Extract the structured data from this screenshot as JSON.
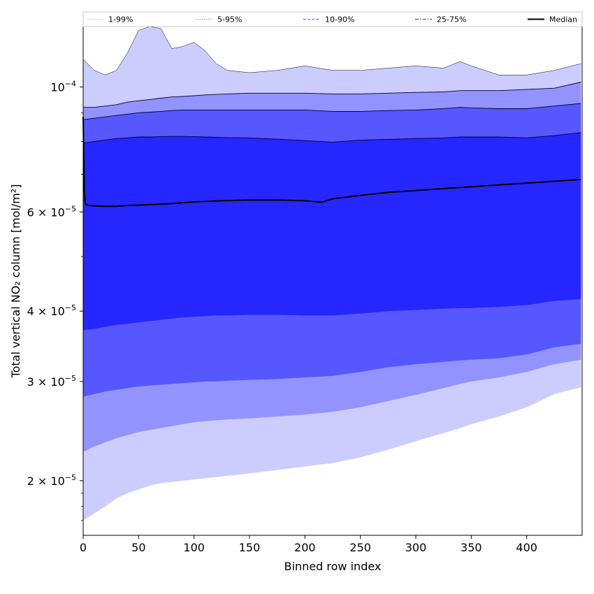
{
  "chart_data": {
    "type": "area",
    "xlabel": "Binned row index",
    "ylabel": "Total vertical NO₂ column [mol/m²]",
    "xlim": [
      0,
      450
    ],
    "ylim": [
      1.6e-05,
      0.000128
    ],
    "yscale": "log",
    "grid": false,
    "legend_position": "top",
    "x_ticks": [
      {
        "value": 0,
        "label": "0"
      },
      {
        "value": 50,
        "label": "50"
      },
      {
        "value": 100,
        "label": "100"
      },
      {
        "value": 150,
        "label": "150"
      },
      {
        "value": 200,
        "label": "200"
      },
      {
        "value": 250,
        "label": "250"
      },
      {
        "value": 300,
        "label": "300"
      },
      {
        "value": 350,
        "label": "350"
      },
      {
        "value": 400,
        "label": "400"
      }
    ],
    "y_ticks": [
      {
        "value": 2e-05,
        "base": "2 × 10",
        "exp": "−5"
      },
      {
        "value": 3e-05,
        "base": "3 × 10",
        "exp": "−5"
      },
      {
        "value": 4e-05,
        "base": "4 × 10",
        "exp": "−5"
      },
      {
        "value": 6e-05,
        "base": "6 × 10",
        "exp": "−5"
      },
      {
        "value": 0.0001,
        "base": "10",
        "exp": "−4"
      }
    ],
    "x": [
      0,
      10,
      20,
      30,
      40,
      50,
      60,
      70,
      80,
      90,
      100,
      110,
      120,
      130,
      150,
      175,
      200,
      225,
      250,
      275,
      300,
      325,
      340,
      350,
      375,
      400,
      425,
      449
    ],
    "bands": [
      {
        "name": "1-99%",
        "color": "#ccccff",
        "lower": [
          1.7e-05,
          1.75e-05,
          1.8e-05,
          1.86e-05,
          1.9e-05,
          1.93e-05,
          1.96e-05,
          1.98e-05,
          1.99e-05,
          2e-05,
          2.01e-05,
          2.02e-05,
          2.03e-05,
          2.04e-05,
          2.06e-05,
          2.09e-05,
          2.12e-05,
          2.15e-05,
          2.2e-05,
          2.27e-05,
          2.35e-05,
          2.43e-05,
          2.48e-05,
          2.52e-05,
          2.6e-05,
          2.7e-05,
          2.85e-05,
          2.93e-05
        ],
        "upper": [
          0.000112,
          0.000107,
          0.000105,
          0.000107,
          0.000115,
          0.000126,
          0.000128,
          0.000127,
          0.000117,
          0.000118,
          0.00012,
          0.000116,
          0.00011,
          0.000107,
          0.000106,
          0.000107,
          0.000109,
          0.000107,
          0.000107,
          0.000108,
          0.000109,
          0.000108,
          0.000111,
          0.000109,
          0.000105,
          0.000105,
          0.000107,
          0.00011
        ]
      },
      {
        "name": "5-95%",
        "color": "#9393ff",
        "lower": [
          2.25e-05,
          2.3e-05,
          2.34e-05,
          2.38e-05,
          2.41e-05,
          2.44e-05,
          2.46e-05,
          2.48e-05,
          2.5e-05,
          2.52e-05,
          2.54e-05,
          2.55e-05,
          2.56e-05,
          2.57e-05,
          2.58e-05,
          2.6e-05,
          2.62e-05,
          2.65e-05,
          2.7e-05,
          2.77e-05,
          2.84e-05,
          2.92e-05,
          2.97e-05,
          3e-05,
          3.05e-05,
          3.12e-05,
          3.22e-05,
          3.28e-05
        ],
        "upper": [
          9.2e-05,
          9.2e-05,
          9.25e-05,
          9.3e-05,
          9.4e-05,
          9.45e-05,
          9.5e-05,
          9.55e-05,
          9.6e-05,
          9.62e-05,
          9.65e-05,
          9.68e-05,
          9.7e-05,
          9.72e-05,
          9.75e-05,
          9.75e-05,
          9.75e-05,
          9.72e-05,
          9.72e-05,
          9.75e-05,
          9.78e-05,
          9.8e-05,
          9.85e-05,
          9.85e-05,
          9.85e-05,
          9.9e-05,
          9.95e-05,
          0.000102
        ]
      },
      {
        "name": "10-90%",
        "color": "#5757ff",
        "lower": [
          2.82e-05,
          2.85e-05,
          2.88e-05,
          2.9e-05,
          2.92e-05,
          2.94e-05,
          2.95e-05,
          2.96e-05,
          2.97e-05,
          2.98e-05,
          2.99e-05,
          3e-05,
          3e-05,
          3.01e-05,
          3.02e-05,
          3.03e-05,
          3.05e-05,
          3.07e-05,
          3.12e-05,
          3.18e-05,
          3.22e-05,
          3.25e-05,
          3.27e-05,
          3.28e-05,
          3.3e-05,
          3.35e-05,
          3.45e-05,
          3.5e-05
        ],
        "upper": [
          8.75e-05,
          8.8e-05,
          8.85e-05,
          8.9e-05,
          8.95e-05,
          9e-05,
          9.02e-05,
          9.05e-05,
          9.08e-05,
          9.1e-05,
          9.1e-05,
          9.1e-05,
          9.1e-05,
          9.1e-05,
          9.1e-05,
          9.1e-05,
          9.1e-05,
          9.05e-05,
          9.05e-05,
          9.08e-05,
          9.1e-05,
          9.15e-05,
          9.2e-05,
          9.18e-05,
          9.15e-05,
          9.15e-05,
          9.25e-05,
          9.35e-05
        ]
      },
      {
        "name": "25-75%",
        "color": "#2626ff",
        "lower": [
          3.7e-05,
          3.72e-05,
          3.75e-05,
          3.78e-05,
          3.8e-05,
          3.82e-05,
          3.84e-05,
          3.86e-05,
          3.88e-05,
          3.9e-05,
          3.91e-05,
          3.92e-05,
          3.93e-05,
          3.93e-05,
          3.94e-05,
          3.94e-05,
          3.93e-05,
          3.93e-05,
          3.96e-05,
          4e-05,
          4.02e-05,
          4.04e-05,
          4.05e-05,
          4.05e-05,
          4.07e-05,
          4.1e-05,
          4.17e-05,
          4.2e-05
        ],
        "upper": [
          7.95e-05,
          8e-05,
          8.05e-05,
          8.1e-05,
          8.12e-05,
          8.15e-05,
          8.15e-05,
          8.16e-05,
          8.17e-05,
          8.17e-05,
          8.16e-05,
          8.15e-05,
          8.14e-05,
          8.13e-05,
          8.12e-05,
          8.08e-05,
          8.03e-05,
          7.98e-05,
          8.05e-05,
          8.07e-05,
          8.1e-05,
          8.12e-05,
          8.15e-05,
          8.15e-05,
          8.15e-05,
          8.12e-05,
          8.2e-05,
          8.3e-05
        ]
      }
    ],
    "median": {
      "name": "Median",
      "color": "#000000",
      "x": [
        0,
        1,
        2,
        5,
        10,
        20,
        30,
        40,
        50,
        75,
        100,
        125,
        150,
        175,
        200,
        215,
        225,
        250,
        275,
        300,
        325,
        350,
        375,
        400,
        425,
        449
      ],
      "values": [
        8.85e-05,
        6.5e-05,
        6.2e-05,
        6.16e-05,
        6.15e-05,
        6.14e-05,
        6.14e-05,
        6.16e-05,
        6.17e-05,
        6.2e-05,
        6.25e-05,
        6.28e-05,
        6.3e-05,
        6.3e-05,
        6.28e-05,
        6.24e-05,
        6.33e-05,
        6.42e-05,
        6.5e-05,
        6.55e-05,
        6.6e-05,
        6.65e-05,
        6.7e-05,
        6.75e-05,
        6.8e-05,
        6.85e-05
      ]
    },
    "legend": [
      {
        "label": "1-99%",
        "color": "#ccccff",
        "style": "solid"
      },
      {
        "label": "5-95%",
        "color": "#9393ff",
        "style": "dotted"
      },
      {
        "label": "10-90%",
        "color": "#5757ff",
        "style": "dashed"
      },
      {
        "label": "25-75%",
        "color": "#2626ff",
        "style": "dashdot"
      },
      {
        "label": "Median",
        "color": "#000000",
        "style": "solid-thick"
      }
    ]
  }
}
